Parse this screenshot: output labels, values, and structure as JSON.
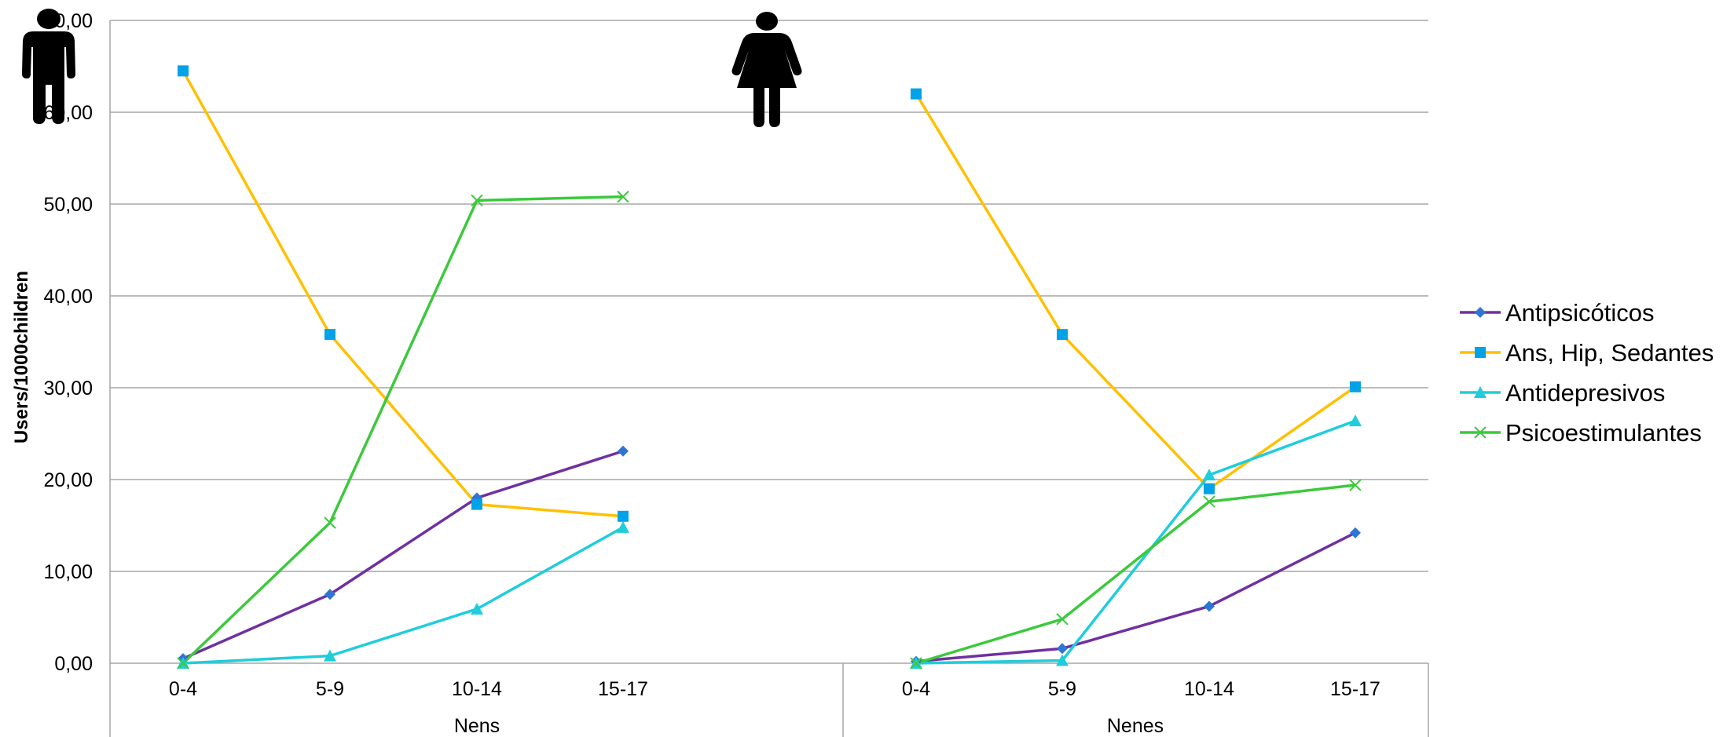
{
  "chart_data": {
    "type": "line",
    "ylabel": "Users/1000children",
    "ylim": [
      0,
      70
    ],
    "yticks": [
      "0,00",
      "10,00",
      "20,00",
      "30,00",
      "40,00",
      "50,00",
      "60,00",
      "70,00"
    ],
    "categories": [
      "0-4",
      "5-9",
      "10-14",
      "15-17"
    ],
    "groups": [
      "Nens",
      "Nenes"
    ],
    "grid": true,
    "legend_position": "right",
    "icons": [
      "male-figure-icon",
      "female-figure-icon"
    ],
    "series": [
      {
        "name": "Antipsicóticos",
        "color": "#7030A0",
        "marker": "diamond",
        "marker_color": "#2E75D4",
        "values": {
          "Nens": [
            0.5,
            7.5,
            18.0,
            23.1
          ],
          "Nenes": [
            0.2,
            1.6,
            6.2,
            14.2
          ]
        }
      },
      {
        "name": "Ans, Hip, Sedantes",
        "color": "#FFC000",
        "marker": "square",
        "marker_color": "#00A2E8",
        "values": {
          "Nens": [
            64.5,
            35.8,
            17.3,
            16.0
          ],
          "Nenes": [
            62.0,
            35.8,
            19.0,
            30.1
          ]
        }
      },
      {
        "name": "Antidepresivos",
        "color": "#1FCDDB",
        "marker": "triangle",
        "marker_color": "#1FCDDB",
        "values": {
          "Nens": [
            0.0,
            0.8,
            5.9,
            14.8
          ],
          "Nenes": [
            0.0,
            0.3,
            20.5,
            26.4
          ]
        }
      },
      {
        "name": "Psicoestimulantes",
        "color": "#3CC93C",
        "marker": "x",
        "marker_color": "#3CC93C",
        "values": {
          "Nens": [
            0.0,
            15.3,
            50.4,
            50.8
          ],
          "Nenes": [
            0.0,
            4.8,
            17.6,
            19.4
          ]
        }
      }
    ]
  }
}
